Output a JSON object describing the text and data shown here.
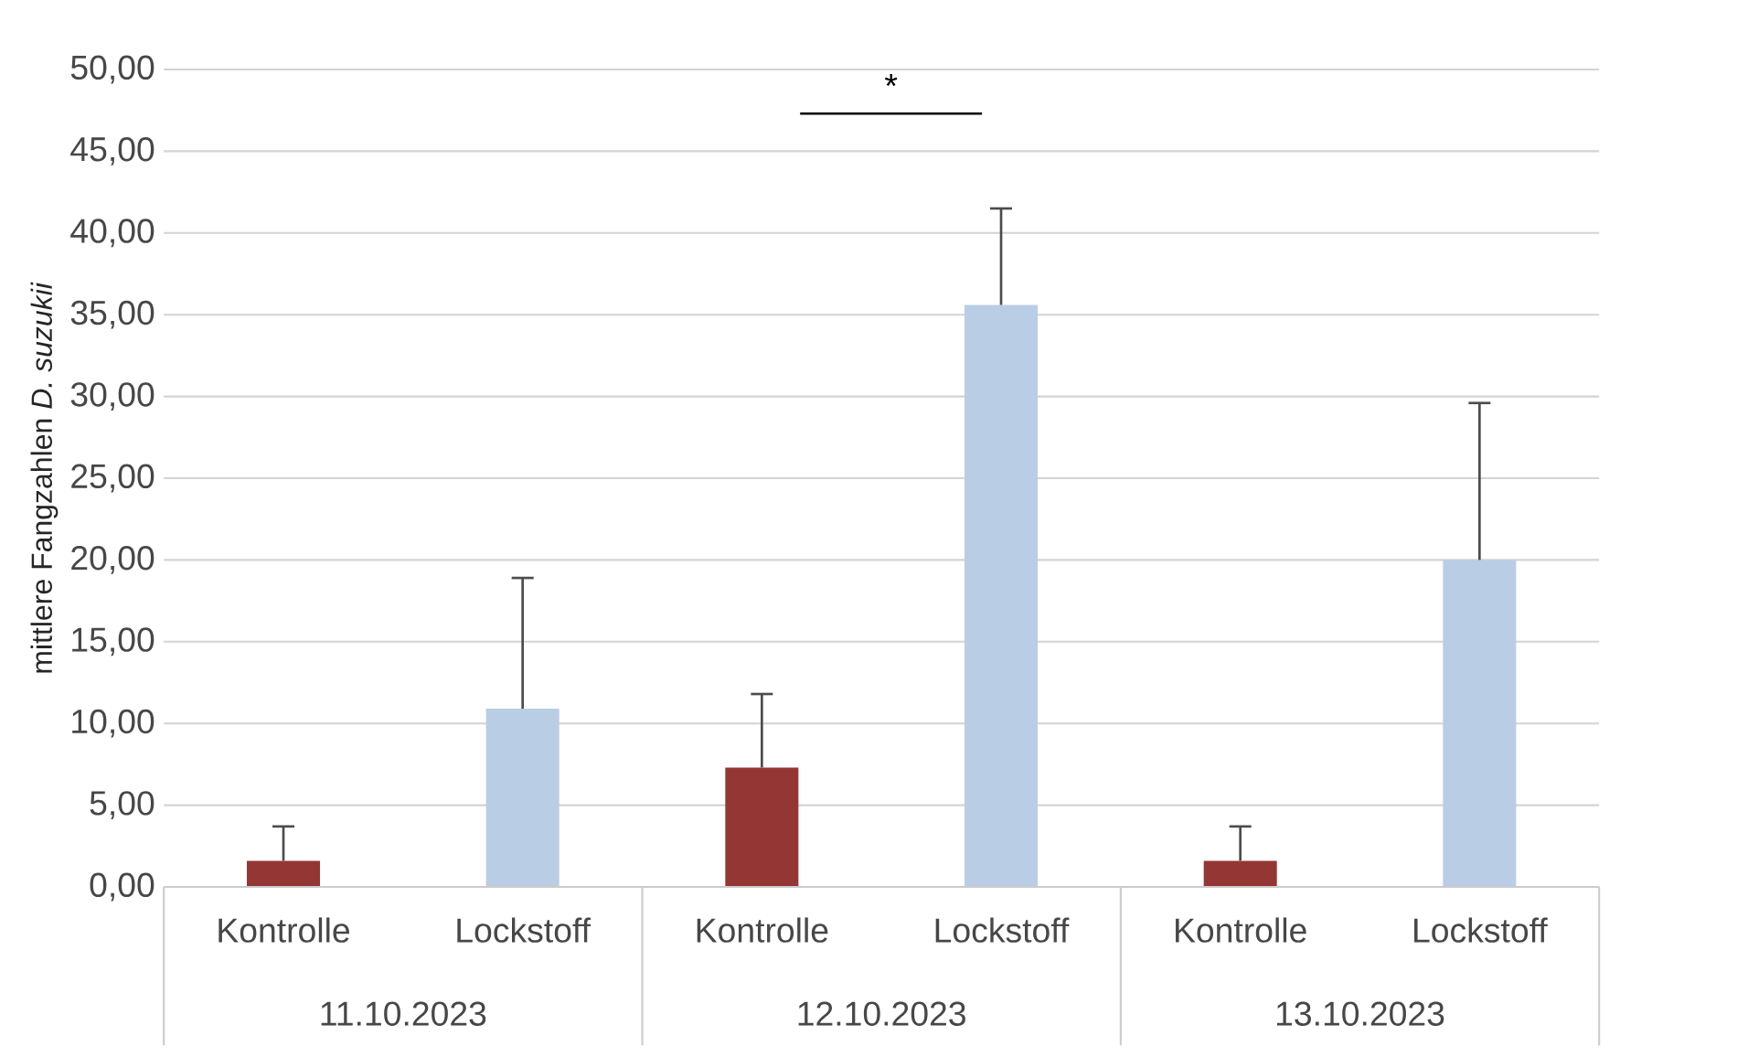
{
  "chart_data": {
    "type": "bar",
    "ylabel": "mittlere Fangzahlen *D. suzukii*",
    "categories": [
      "Kontrolle",
      "Lockstoff",
      "Kontrolle",
      "Lockstoff",
      "Kontrolle",
      "Lockstoff"
    ],
    "values": [
      1.6,
      10.9,
      7.3,
      35.6,
      1.6,
      20.0
    ],
    "colors": [
      "#943634",
      "#b9cde5",
      "#943634",
      "#b9cde5",
      "#943634",
      "#b9cde5"
    ],
    "errors": [
      [
        1.6,
        3.7
      ],
      [
        10.9,
        18.9
      ],
      [
        7.3,
        11.8
      ],
      [
        35.6,
        41.5
      ],
      [
        1.6,
        3.7
      ],
      [
        20.0,
        29.6
      ]
    ],
    "ylim": [
      0,
      50
    ],
    "yticks": [
      {
        "value": 0,
        "label": "0,00"
      },
      {
        "value": 5,
        "label": "5,00"
      },
      {
        "value": 10,
        "label": "10,00"
      },
      {
        "value": 15,
        "label": "15,00"
      },
      {
        "value": 20,
        "label": "20,00"
      },
      {
        "value": 25,
        "label": "25,00"
      },
      {
        "value": 30,
        "label": "30,00"
      },
      {
        "value": 35,
        "label": "35,00"
      },
      {
        "value": 40,
        "label": "40,00"
      },
      {
        "value": 45,
        "label": "45,00"
      },
      {
        "value": 50,
        "label": "50,00"
      }
    ],
    "grid": "y",
    "annotations": [
      "11.10.2023",
      "12.10.2023",
      "13.10.2023",
      "*"
    ]
  }
}
